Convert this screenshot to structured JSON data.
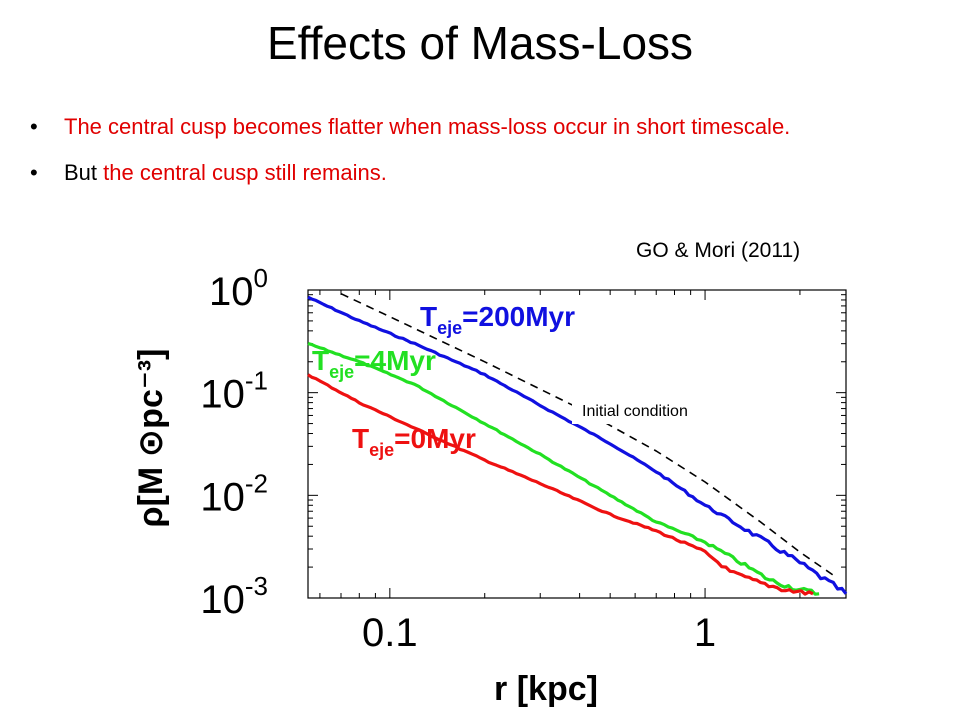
{
  "slide": {
    "title": "Effects of Mass-Loss",
    "bullets": [
      {
        "text": "The central cusp becomes flatter when mass-loss occur in short timescale."
      },
      {
        "prefix": "But ",
        "highlight": "the central cusp still remains."
      }
    ],
    "citation": "GO & Mori (2011)"
  },
  "chart_data": {
    "type": "line",
    "xscale": "log",
    "yscale": "log",
    "xlim": [
      0.055,
      2.8
    ],
    "ylim": [
      0.001,
      1
    ],
    "xlabel": "r [kpc]",
    "ylabel": "ρ[M ⊙pc⁻³]",
    "xticks": [
      {
        "value": 0.1,
        "label": "0.1"
      },
      {
        "value": 1,
        "label": "1"
      }
    ],
    "yticks": [
      {
        "value": 1,
        "base": "10",
        "exp": "0"
      },
      {
        "value": 0.1,
        "base": "10",
        "exp": "-1"
      },
      {
        "value": 0.01,
        "base": "10",
        "exp": "-2"
      },
      {
        "value": 0.001,
        "base": "10",
        "exp": "-3"
      }
    ],
    "annotations": [
      {
        "text": "Initial condition"
      }
    ],
    "series": [
      {
        "name": "T_eje=200Myr",
        "label_main": "T",
        "label_sub": "eje",
        "label_rest": "=200Myr",
        "color": "#1010e0",
        "style": "solid",
        "x": [
          0.055,
          0.08,
          0.12,
          0.2,
          0.3,
          0.5,
          0.7,
          1.0,
          1.5,
          2.0,
          2.4,
          2.8
        ],
        "y": [
          0.85,
          0.5,
          0.3,
          0.15,
          0.075,
          0.032,
          0.017,
          0.008,
          0.0038,
          0.0022,
          0.0015,
          0.0011
        ]
      },
      {
        "name": "T_eje=4Myr",
        "label_main": "T",
        "label_sub": "eje",
        "label_rest": "=4Myr",
        "color": "#22e022",
        "style": "solid",
        "x": [
          0.055,
          0.08,
          0.12,
          0.2,
          0.3,
          0.5,
          0.7,
          1.0,
          1.3,
          1.6,
          2.0,
          2.3
        ],
        "y": [
          0.3,
          0.2,
          0.12,
          0.05,
          0.025,
          0.01,
          0.0055,
          0.0035,
          0.0022,
          0.0015,
          0.0012,
          0.0011
        ]
      },
      {
        "name": "T_eje=0Myr",
        "label_main": "T",
        "label_sub": "eje",
        "label_rest": "=0Myr",
        "color": "#ee1111",
        "style": "solid",
        "x": [
          0.055,
          0.08,
          0.12,
          0.2,
          0.3,
          0.5,
          0.7,
          1.0,
          1.2,
          1.5,
          1.8,
          2.2
        ],
        "y": [
          0.15,
          0.08,
          0.045,
          0.022,
          0.013,
          0.0065,
          0.0045,
          0.0028,
          0.0018,
          0.0014,
          0.0012,
          0.0011
        ]
      },
      {
        "name": "Initial condition",
        "color": "#000000",
        "style": "dashed",
        "x": [
          0.07,
          0.1,
          0.2,
          0.4,
          0.7,
          1.0,
          1.5,
          2.0,
          2.6
        ],
        "y": [
          0.92,
          0.55,
          0.2,
          0.07,
          0.027,
          0.0135,
          0.0055,
          0.0028,
          0.0016
        ]
      }
    ]
  }
}
